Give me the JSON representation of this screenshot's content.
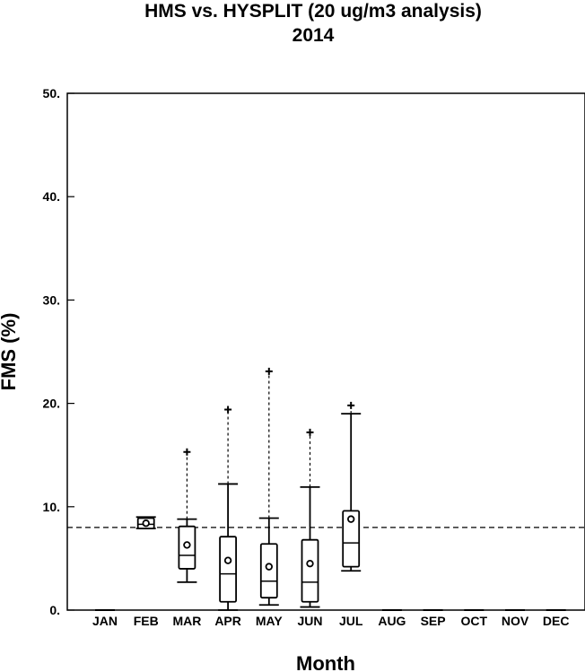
{
  "chart_data": {
    "type": "box",
    "title": "HMS vs. HYSPLIT (20 ug/m3 analysis)",
    "subtitle": "2014",
    "xlabel": "Month",
    "ylabel": "FMS (%)",
    "ylim": [
      0,
      50
    ],
    "yticks": [
      "0.",
      "10.",
      "20.",
      "30.",
      "40.",
      "50."
    ],
    "ytick_values": [
      0,
      10,
      20,
      30,
      40,
      50
    ],
    "categories": [
      "JAN",
      "FEB",
      "MAR",
      "APR",
      "MAY",
      "JUN",
      "JUL",
      "AUG",
      "SEP",
      "OCT",
      "NOV",
      "DEC"
    ],
    "reference_line": 8.0,
    "grid": false,
    "boxes": [
      {
        "month": "JAN",
        "empty": true
      },
      {
        "month": "FEB",
        "whisker_low": 7.9,
        "q1": 7.9,
        "median": 8.3,
        "q3": 8.9,
        "whisker_high": 9.0,
        "mean": 8.4,
        "outliers": []
      },
      {
        "month": "MAR",
        "whisker_low": 2.7,
        "q1": 4.0,
        "median": 5.3,
        "q3": 8.1,
        "whisker_high": 8.8,
        "mean": 6.3,
        "outliers": [
          15.3
        ]
      },
      {
        "month": "APR",
        "whisker_low": 0.0,
        "q1": 0.8,
        "median": 3.5,
        "q3": 7.1,
        "whisker_high": 12.2,
        "mean": 4.8,
        "outliers": [
          19.4
        ]
      },
      {
        "month": "MAY",
        "whisker_low": 0.5,
        "q1": 1.2,
        "median": 2.8,
        "q3": 6.4,
        "whisker_high": 8.9,
        "mean": 4.2,
        "outliers": [
          23.1
        ]
      },
      {
        "month": "JUN",
        "whisker_low": 0.3,
        "q1": 0.8,
        "median": 2.7,
        "q3": 6.8,
        "whisker_high": 11.9,
        "mean": 4.5,
        "outliers": [
          17.2
        ]
      },
      {
        "month": "JUL",
        "whisker_low": 3.8,
        "q1": 4.2,
        "median": 6.5,
        "q3": 9.6,
        "whisker_high": 19.0,
        "mean": 8.8,
        "outliers": [
          19.8
        ]
      },
      {
        "month": "AUG",
        "empty": true
      },
      {
        "month": "SEP",
        "empty": true
      },
      {
        "month": "OCT",
        "empty": true
      },
      {
        "month": "NOV",
        "empty": true
      },
      {
        "month": "DEC",
        "empty": true
      }
    ]
  }
}
